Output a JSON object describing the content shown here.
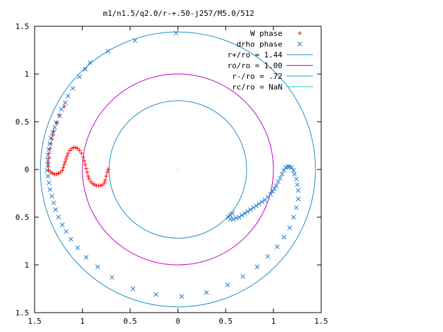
{
  "chart_data": {
    "type": "scatter",
    "title": "m1/n1.5/q2.0/r-+.50-j257/M5.0/512",
    "xlim": [
      -1.5,
      1.5
    ],
    "ylim": [
      -1.5,
      1.5
    ],
    "x_ticks": [
      {
        "value": -1.5,
        "label": "1.5"
      },
      {
        "value": -1.0,
        "label": "1"
      },
      {
        "value": -0.5,
        "label": "0.5"
      },
      {
        "value": 0.0,
        "label": "0"
      },
      {
        "value": 0.5,
        "label": "0.5"
      },
      {
        "value": 1.0,
        "label": "1"
      },
      {
        "value": 1.5,
        "label": "1.5"
      }
    ],
    "y_ticks": [
      {
        "value": 1.5,
        "label": "1.5"
      },
      {
        "value": 1.0,
        "label": "1"
      },
      {
        "value": 0.5,
        "label": "0.5"
      },
      {
        "value": 0.0,
        "label": "0"
      },
      {
        "value": -0.5,
        "label": "0.5"
      },
      {
        "value": -1.0,
        "label": "1"
      },
      {
        "value": -1.5,
        "label": "1.5"
      }
    ],
    "legend_position": "top-right",
    "series": [
      {
        "name": "W phase",
        "kind": "points",
        "marker": "plus",
        "color": "#ff0000",
        "points": [
          [
            -1.3,
            0.4
          ],
          [
            -1.31,
            0.36
          ],
          [
            -1.32,
            0.32
          ],
          [
            -1.33,
            0.27
          ],
          [
            -1.34,
            0.22
          ],
          [
            -1.35,
            0.17
          ],
          [
            -1.35,
            0.12
          ],
          [
            -1.36,
            0.07
          ],
          [
            -1.36,
            0.03
          ],
          [
            -1.35,
            -0.01
          ],
          [
            -1.33,
            -0.03
          ],
          [
            -1.31,
            -0.04
          ],
          [
            -1.29,
            -0.05
          ],
          [
            -1.27,
            -0.05
          ],
          [
            -1.25,
            -0.04
          ],
          [
            -1.23,
            -0.03
          ],
          [
            -1.21,
            -0.01
          ],
          [
            -1.2,
            0.02
          ],
          [
            -1.19,
            0.05
          ],
          [
            -1.18,
            0.08
          ],
          [
            -1.17,
            0.11
          ],
          [
            -1.16,
            0.14
          ],
          [
            -1.15,
            0.17
          ],
          [
            -1.13,
            0.2
          ],
          [
            -1.11,
            0.22
          ],
          [
            -1.09,
            0.23
          ],
          [
            -1.07,
            0.23
          ],
          [
            -1.05,
            0.22
          ],
          [
            -1.03,
            0.2
          ],
          [
            -1.01,
            0.17
          ],
          [
            -0.99,
            0.13
          ],
          [
            -0.98,
            0.09
          ],
          [
            -0.97,
            0.05
          ],
          [
            -0.96,
            0.01
          ],
          [
            -0.95,
            -0.03
          ],
          [
            -0.94,
            -0.07
          ],
          [
            -0.93,
            -0.1
          ],
          [
            -0.91,
            -0.13
          ],
          [
            -0.89,
            -0.15
          ],
          [
            -0.87,
            -0.16
          ],
          [
            -0.85,
            -0.17
          ],
          [
            -0.83,
            -0.17
          ],
          [
            -0.81,
            -0.17
          ],
          [
            -0.79,
            -0.16
          ],
          [
            -0.77,
            -0.14
          ],
          [
            -0.76,
            -0.11
          ],
          [
            -0.75,
            -0.07
          ],
          [
            -0.74,
            -0.03
          ],
          [
            -0.73,
            0.0
          ],
          [
            -1.27,
            0.49
          ],
          [
            -1.24,
            0.57
          ],
          [
            -1.19,
            0.66
          ]
        ]
      },
      {
        "name": "drho phase",
        "kind": "points",
        "marker": "cross",
        "color": "#1e7bd0",
        "points": [
          [
            -0.02,
            1.43
          ],
          [
            -0.45,
            1.35
          ],
          [
            -0.73,
            1.24
          ],
          [
            -0.92,
            1.12
          ],
          [
            -0.97,
            1.05
          ],
          [
            -1.03,
            0.97
          ],
          [
            -1.1,
            0.85
          ],
          [
            -1.15,
            0.77
          ],
          [
            -1.18,
            0.7
          ],
          [
            -1.22,
            0.63
          ],
          [
            -1.24,
            0.56
          ],
          [
            -1.27,
            0.49
          ],
          [
            -1.29,
            0.44
          ],
          [
            -1.31,
            0.39
          ],
          [
            -1.33,
            0.33
          ],
          [
            -1.34,
            0.27
          ],
          [
            -1.35,
            0.21
          ],
          [
            -1.36,
            0.15
          ],
          [
            -1.36,
            0.1
          ],
          [
            -1.36,
            0.05
          ],
          [
            -1.37,
            -0.01
          ],
          [
            -1.36,
            -0.07
          ],
          [
            -1.35,
            -0.14
          ],
          [
            -1.34,
            -0.21
          ],
          [
            -1.32,
            -0.28
          ],
          [
            -1.3,
            -0.35
          ],
          [
            -1.28,
            -0.42
          ],
          [
            -1.25,
            -0.5
          ],
          [
            -1.21,
            -0.58
          ],
          [
            -1.17,
            -0.65
          ],
          [
            -1.12,
            -0.73
          ],
          [
            -1.05,
            -0.82
          ],
          [
            -0.96,
            -0.92
          ],
          [
            -0.84,
            -1.02
          ],
          [
            -0.69,
            -1.13
          ],
          [
            -0.47,
            -1.25
          ],
          [
            -0.23,
            -1.31
          ],
          [
            0.04,
            -1.33
          ],
          [
            0.3,
            -1.29
          ],
          [
            0.52,
            -1.21
          ],
          [
            0.68,
            -1.12
          ],
          [
            0.83,
            -1.02
          ],
          [
            0.94,
            -0.91
          ],
          [
            1.04,
            -0.81
          ],
          [
            1.11,
            -0.71
          ],
          [
            1.17,
            -0.61
          ],
          [
            1.21,
            -0.5
          ],
          [
            1.24,
            -0.4
          ],
          [
            1.26,
            -0.31
          ],
          [
            1.26,
            -0.22
          ],
          [
            1.25,
            -0.16
          ],
          [
            1.24,
            -0.1
          ],
          [
            1.22,
            -0.05
          ],
          [
            1.21,
            -0.01
          ],
          [
            1.19,
            0.02
          ],
          [
            1.17,
            0.03
          ],
          [
            1.15,
            0.03
          ],
          [
            1.13,
            0.02
          ],
          [
            1.11,
            -0.01
          ],
          [
            1.09,
            -0.05
          ],
          [
            1.07,
            -0.09
          ],
          [
            1.05,
            -0.13
          ],
          [
            1.03,
            -0.17
          ],
          [
            1.01,
            -0.2
          ],
          [
            0.99,
            -0.23
          ],
          [
            0.97,
            -0.26
          ],
          [
            0.94,
            -0.29
          ],
          [
            0.91,
            -0.32
          ],
          [
            0.88,
            -0.34
          ],
          [
            0.85,
            -0.36
          ],
          [
            0.82,
            -0.38
          ],
          [
            0.79,
            -0.4
          ],
          [
            0.76,
            -0.42
          ],
          [
            0.73,
            -0.44
          ],
          [
            0.7,
            -0.46
          ],
          [
            0.67,
            -0.48
          ],
          [
            0.64,
            -0.5
          ],
          [
            0.61,
            -0.51
          ],
          [
            0.58,
            -0.52
          ],
          [
            0.55,
            -0.52
          ],
          [
            0.53,
            -0.5
          ],
          [
            0.55,
            -0.48
          ],
          [
            0.57,
            -0.46
          ]
        ]
      },
      {
        "name": "r+/ro = 1.44",
        "kind": "circle",
        "radius": 1.44,
        "color": "#1f8fc7"
      },
      {
        "name": "ro/ro = 1.00",
        "kind": "circle",
        "radius": 1.0,
        "color": "#c000c0"
      },
      {
        "name": "r-/ro = .72",
        "kind": "circle",
        "radius": 0.72,
        "color": "#1f8fc7"
      },
      {
        "name": "rc/ro = NaN",
        "kind": "circle",
        "radius": null,
        "color": "#22cccc"
      }
    ]
  }
}
